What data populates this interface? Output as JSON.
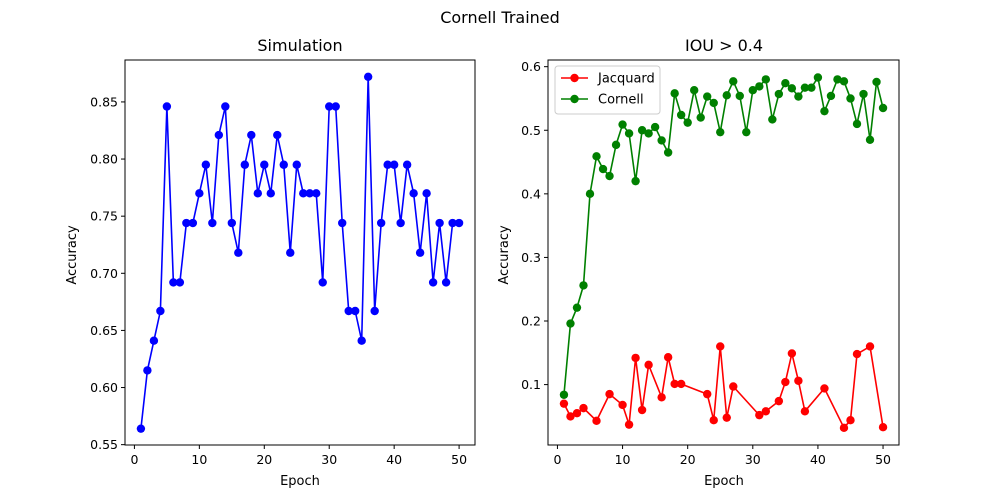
{
  "figure": {
    "suptitle": "Cornell Trained"
  },
  "chart_data": [
    {
      "type": "line",
      "title": "Simulation",
      "xlabel": "Epoch",
      "ylabel": "Accuracy",
      "xlim": [
        -1.45,
        52.45
      ],
      "ylim": [
        0.5497,
        0.8867
      ],
      "xticks": [
        0,
        10,
        20,
        30,
        40,
        50
      ],
      "xtick_labels": [
        "0",
        "10",
        "20",
        "30",
        "40",
        "50"
      ],
      "yticks": [
        0.55,
        0.6,
        0.65,
        0.7,
        0.75,
        0.8,
        0.85
      ],
      "ytick_labels": [
        "0.55",
        "0.60",
        "0.65",
        "0.70",
        "0.75",
        "0.80",
        "0.85"
      ],
      "grid": false,
      "series": [
        {
          "color": "#0000ff",
          "marker": "circle",
          "x": [
            1,
            2,
            3,
            4,
            5,
            6,
            7,
            8,
            9,
            10,
            11,
            12,
            13,
            14,
            15,
            16,
            17,
            18,
            19,
            20,
            21,
            22,
            23,
            24,
            25,
            26,
            27,
            28,
            29,
            30,
            31,
            32,
            33,
            34,
            35,
            36,
            37,
            38,
            39,
            40,
            41,
            42,
            43,
            44,
            45,
            46,
            47,
            48,
            49,
            50
          ],
          "values": [
            0.564,
            0.615,
            0.641,
            0.667,
            0.846,
            0.692,
            0.692,
            0.744,
            0.744,
            0.77,
            0.795,
            0.744,
            0.821,
            0.846,
            0.744,
            0.718,
            0.795,
            0.821,
            0.77,
            0.795,
            0.77,
            0.821,
            0.795,
            0.718,
            0.795,
            0.77,
            0.77,
            0.77,
            0.692,
            0.846,
            0.846,
            0.744,
            0.667,
            0.667,
            0.641,
            0.872,
            0.667,
            0.744,
            0.795,
            0.795,
            0.744,
            0.795,
            0.77,
            0.718,
            0.77,
            0.692,
            0.744,
            0.692,
            0.744,
            0.744
          ]
        }
      ]
    },
    {
      "type": "line",
      "title": "IOU > 0.4",
      "xlabel": "Epoch",
      "ylabel": "Accuracy",
      "xlim": [
        -1.45,
        52.45
      ],
      "ylim": [
        0.005,
        0.6105
      ],
      "xticks": [
        0,
        10,
        20,
        30,
        40,
        50
      ],
      "xtick_labels": [
        "0",
        "10",
        "20",
        "30",
        "40",
        "50"
      ],
      "yticks": [
        0.1,
        0.2,
        0.3,
        0.4,
        0.5,
        0.6
      ],
      "ytick_labels": [
        "0.1",
        "0.2",
        "0.3",
        "0.4",
        "0.5",
        "0.6"
      ],
      "grid": false,
      "legend": "top-left",
      "series": [
        {
          "name": "Jacquard",
          "color": "#ff0000",
          "marker": "circle",
          "x": [
            1,
            2,
            3,
            4,
            6,
            8,
            10,
            11,
            12,
            13,
            14,
            16,
            17,
            18,
            19,
            23,
            24,
            25,
            26,
            27,
            31,
            32,
            34,
            35,
            36,
            37,
            38,
            41,
            44,
            45,
            46,
            48,
            50
          ],
          "values": [
            0.07,
            0.05,
            0.055,
            0.063,
            0.043,
            0.085,
            0.068,
            0.037,
            0.142,
            0.06,
            0.131,
            0.08,
            0.143,
            0.101,
            0.101,
            0.085,
            0.044,
            0.16,
            0.048,
            0.097,
            0.052,
            0.058,
            0.074,
            0.104,
            0.149,
            0.106,
            0.058,
            0.094,
            0.032,
            0.044,
            0.148,
            0.16,
            0.033
          ]
        },
        {
          "name": "Cornell",
          "color": "#008000",
          "marker": "circle",
          "x": [
            1,
            2,
            3,
            4,
            5,
            6,
            7,
            8,
            9,
            10,
            11,
            12,
            13,
            14,
            15,
            16,
            17,
            18,
            19,
            20,
            21,
            22,
            23,
            24,
            25,
            26,
            27,
            28,
            29,
            30,
            31,
            32,
            33,
            34,
            35,
            36,
            37,
            38,
            39,
            40,
            41,
            42,
            43,
            44,
            45,
            46,
            47,
            48,
            49,
            50
          ],
          "values": [
            0.084,
            0.196,
            0.221,
            0.256,
            0.4,
            0.459,
            0.439,
            0.428,
            0.477,
            0.509,
            0.495,
            0.42,
            0.5,
            0.495,
            0.505,
            0.484,
            0.465,
            0.558,
            0.524,
            0.512,
            0.563,
            0.52,
            0.553,
            0.543,
            0.497,
            0.555,
            0.577,
            0.554,
            0.497,
            0.563,
            0.569,
            0.58,
            0.517,
            0.557,
            0.574,
            0.566,
            0.553,
            0.567,
            0.567,
            0.583,
            0.53,
            0.554,
            0.58,
            0.577,
            0.55,
            0.51,
            0.557,
            0.485,
            0.576,
            0.535
          ]
        }
      ]
    }
  ]
}
